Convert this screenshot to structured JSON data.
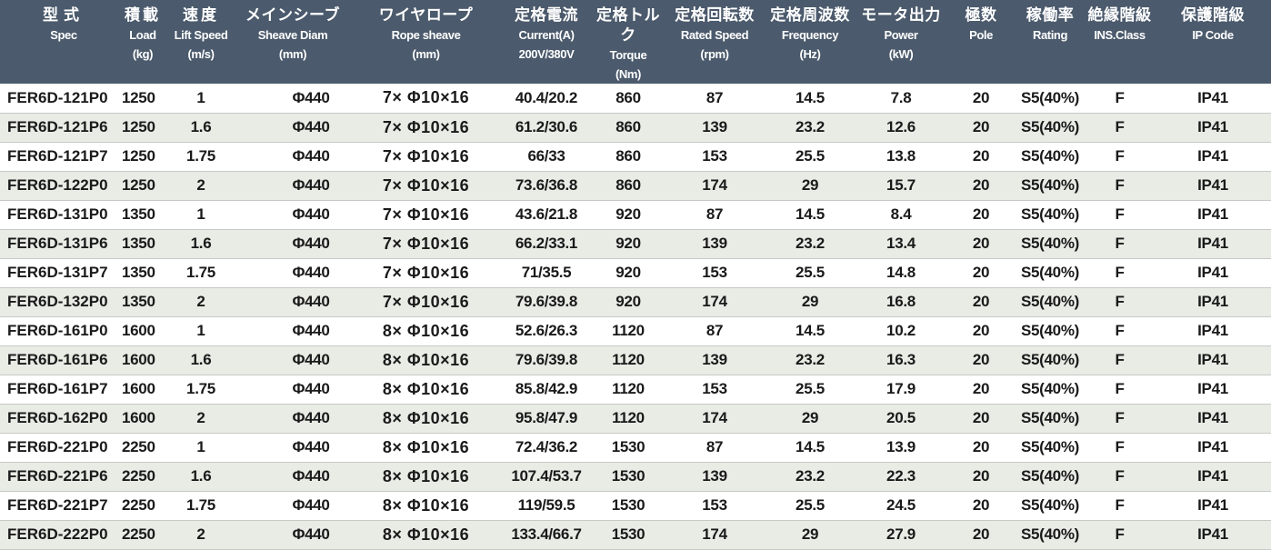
{
  "columns": [
    {
      "jp": "型式",
      "en": [
        "Spec"
      ]
    },
    {
      "jp": "積載",
      "en": [
        "Load",
        "(kg)"
      ]
    },
    {
      "jp": "速度",
      "en": [
        "Lift Speed",
        "(m/s)"
      ]
    },
    {
      "jp": "メインシーブ",
      "en": [
        "Sheave Diam",
        "(mm)"
      ]
    },
    {
      "jp": "ワイヤロープ",
      "en": [
        "Rope sheave",
        "(mm)"
      ]
    },
    {
      "jp": "定格電流",
      "en": [
        "Current(A)",
        "200V/380V"
      ]
    },
    {
      "jp": "定格トルク",
      "en": [
        "Torque",
        "(Nm)"
      ]
    },
    {
      "jp": "定格回転数",
      "en": [
        "Rated Speed",
        "(rpm)"
      ]
    },
    {
      "jp": "定格周波数",
      "en": [
        "Frequency",
        "(Hz)"
      ]
    },
    {
      "jp": "モータ出力",
      "en": [
        "Power",
        "(kW)"
      ]
    },
    {
      "jp": "極数",
      "en": [
        "Pole"
      ]
    },
    {
      "jp": "稼働率",
      "en": [
        "Rating"
      ]
    },
    {
      "jp": "絶縁階級",
      "en": [
        "INS.Class"
      ]
    },
    {
      "jp": "保護階級",
      "en": [
        "IP Code"
      ]
    }
  ],
  "rows": [
    [
      "FER6D-121P0",
      "1250",
      "1",
      "Φ440",
      "7× Φ10×16",
      "40.4/20.2",
      "860",
      "87",
      "14.5",
      "7.8",
      "20",
      "S5(40%)",
      "F",
      "IP41"
    ],
    [
      "FER6D-121P6",
      "1250",
      "1.6",
      "Φ440",
      "7× Φ10×16",
      "61.2/30.6",
      "860",
      "139",
      "23.2",
      "12.6",
      "20",
      "S5(40%)",
      "F",
      "IP41"
    ],
    [
      "FER6D-121P7",
      "1250",
      "1.75",
      "Φ440",
      "7× Φ10×16",
      "66/33",
      "860",
      "153",
      "25.5",
      "13.8",
      "20",
      "S5(40%)",
      "F",
      "IP41"
    ],
    [
      "FER6D-122P0",
      "1250",
      "2",
      "Φ440",
      "7× Φ10×16",
      "73.6/36.8",
      "860",
      "174",
      "29",
      "15.7",
      "20",
      "S5(40%)",
      "F",
      "IP41"
    ],
    [
      "FER6D-131P0",
      "1350",
      "1",
      "Φ440",
      "7× Φ10×16",
      "43.6/21.8",
      "920",
      "87",
      "14.5",
      "8.4",
      "20",
      "S5(40%)",
      "F",
      "IP41"
    ],
    [
      "FER6D-131P6",
      "1350",
      "1.6",
      "Φ440",
      "7× Φ10×16",
      "66.2/33.1",
      "920",
      "139",
      "23.2",
      "13.4",
      "20",
      "S5(40%)",
      "F",
      "IP41"
    ],
    [
      "FER6D-131P7",
      "1350",
      "1.75",
      "Φ440",
      "7× Φ10×16",
      "71/35.5",
      "920",
      "153",
      "25.5",
      "14.8",
      "20",
      "S5(40%)",
      "F",
      "IP41"
    ],
    [
      "FER6D-132P0",
      "1350",
      "2",
      "Φ440",
      "7× Φ10×16",
      "79.6/39.8",
      "920",
      "174",
      "29",
      "16.8",
      "20",
      "S5(40%)",
      "F",
      "IP41"
    ],
    [
      "FER6D-161P0",
      "1600",
      "1",
      "Φ440",
      "8× Φ10×16",
      "52.6/26.3",
      "1120",
      "87",
      "14.5",
      "10.2",
      "20",
      "S5(40%)",
      "F",
      "IP41"
    ],
    [
      "FER6D-161P6",
      "1600",
      "1.6",
      "Φ440",
      "8× Φ10×16",
      "79.6/39.8",
      "1120",
      "139",
      "23.2",
      "16.3",
      "20",
      "S5(40%)",
      "F",
      "IP41"
    ],
    [
      "FER6D-161P7",
      "1600",
      "1.75",
      "Φ440",
      "8× Φ10×16",
      "85.8/42.9",
      "1120",
      "153",
      "25.5",
      "17.9",
      "20",
      "S5(40%)",
      "F",
      "IP41"
    ],
    [
      "FER6D-162P0",
      "1600",
      "2",
      "Φ440",
      "8× Φ10×16",
      "95.8/47.9",
      "1120",
      "174",
      "29",
      "20.5",
      "20",
      "S5(40%)",
      "F",
      "IP41"
    ],
    [
      "FER6D-221P0",
      "2250",
      "1",
      "Φ440",
      "8× Φ10×16",
      "72.4/36.2",
      "1530",
      "87",
      "14.5",
      "13.9",
      "20",
      "S5(40%)",
      "F",
      "IP41"
    ],
    [
      "FER6D-221P6",
      "2250",
      "1.6",
      "Φ440",
      "8× Φ10×16",
      "107.4/53.7",
      "1530",
      "139",
      "23.2",
      "22.3",
      "20",
      "S5(40%)",
      "F",
      "IP41"
    ],
    [
      "FER6D-221P7",
      "2250",
      "1.75",
      "Φ440",
      "8× Φ10×16",
      "119/59.5",
      "1530",
      "153",
      "25.5",
      "24.5",
      "20",
      "S5(40%)",
      "F",
      "IP41"
    ],
    [
      "FER6D-222P0",
      "2250",
      "2",
      "Φ440",
      "8× Φ10×16",
      "133.4/66.7",
      "1530",
      "174",
      "29",
      "27.9",
      "20",
      "S5(40%)",
      "F",
      "IP41"
    ]
  ]
}
